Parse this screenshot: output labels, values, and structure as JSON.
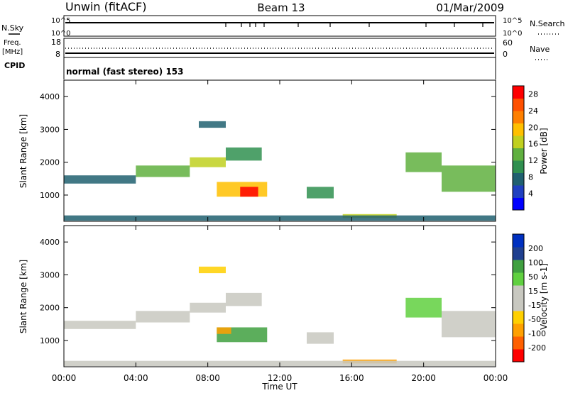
{
  "header": {
    "station": "Unwin (fitACF)",
    "beam": "Beam 13",
    "date": "01/Mar/2009"
  },
  "top_panels": {
    "nsky_label": "N.Sky",
    "nsearch_label": "N.Search",
    "noise_ticks_left": [
      "10^5",
      "10^0"
    ],
    "noise_ticks_right": [
      "10^5",
      "10^0"
    ],
    "freq_label_line1": "Freq.",
    "freq_label_line2": "[MHz]",
    "freq_ticks": [
      "18",
      "8"
    ],
    "nave_label": "Nave",
    "nave_ticks": [
      "60",
      "0"
    ],
    "cpid_label": "CPID",
    "cpid_value": "normal (fast stereo) 153"
  },
  "colors": {
    "axis": "#000000",
    "power_scale": [
      "#0000ff",
      "#2040c0",
      "#206070",
      "#309050",
      "#60b040",
      "#c0d020",
      "#ffc000",
      "#ff8000",
      "#ff5000",
      "#ff0000"
    ],
    "velocity_scale": [
      "#ff0000",
      "#ff6000",
      "#ffa000",
      "#ffd000",
      "#c8c8c0",
      "#c8c8c0",
      "#60d040",
      "#40a040",
      "#204090",
      "#0030c0"
    ]
  },
  "chart_data": [
    {
      "type": "heatmap",
      "title": "",
      "xlabel": "Time UT",
      "ylabel": "Slant Range [km]",
      "x_ticks": [
        "00:00",
        "04:00",
        "08:00",
        "12:00",
        "16:00",
        "20:00",
        "00:00"
      ],
      "y_ticks": [
        "1000",
        "2000",
        "3000",
        "4000"
      ],
      "xlim_hours": [
        0,
        24
      ],
      "ylim_km": [
        200,
        4500
      ],
      "colorbar": {
        "label": "Power [dB]",
        "ticks": [
          "4",
          "8",
          "12",
          "16",
          "20",
          "24",
          "28"
        ],
        "range": [
          0,
          30
        ]
      },
      "echo_regions": [
        {
          "t_start": 0.0,
          "t_end": 4.0,
          "r_start": 1350,
          "r_end": 1600,
          "power_db": 8
        },
        {
          "t_start": 4.0,
          "t_end": 7.0,
          "r_start": 1550,
          "r_end": 1900,
          "power_db": 12
        },
        {
          "t_start": 7.0,
          "t_end": 9.0,
          "r_start": 1850,
          "r_end": 2150,
          "power_db": 16
        },
        {
          "t_start": 9.0,
          "t_end": 11.0,
          "r_start": 2050,
          "r_end": 2450,
          "power_db": 10
        },
        {
          "t_start": 8.5,
          "t_end": 11.3,
          "r_start": 950,
          "r_end": 1400,
          "power_db": 20
        },
        {
          "t_start": 9.8,
          "t_end": 10.8,
          "r_start": 950,
          "r_end": 1250,
          "power_db": 28
        },
        {
          "t_start": 7.5,
          "t_end": 9.0,
          "r_start": 3050,
          "r_end": 3250,
          "power_db": 6
        },
        {
          "t_start": 13.5,
          "t_end": 15.0,
          "r_start": 900,
          "r_end": 1250,
          "power_db": 10
        },
        {
          "t_start": 15.5,
          "t_end": 18.5,
          "r_start": 300,
          "r_end": 420,
          "power_db": 16
        },
        {
          "t_start": 19.0,
          "t_end": 21.0,
          "r_start": 1700,
          "r_end": 2300,
          "power_db": 12
        },
        {
          "t_start": 21.0,
          "t_end": 24.0,
          "r_start": 1100,
          "r_end": 1900,
          "power_db": 14
        },
        {
          "t_start": 0.0,
          "t_end": 24.0,
          "r_start": 220,
          "r_end": 380,
          "power_db": 8
        }
      ]
    },
    {
      "type": "heatmap",
      "title": "",
      "xlabel": "Time UT",
      "ylabel": "Slant Range [km]",
      "x_ticks": [
        "00:00",
        "04:00",
        "08:00",
        "12:00",
        "16:00",
        "20:00",
        "00:00"
      ],
      "y_ticks": [
        "1000",
        "2000",
        "3000",
        "4000"
      ],
      "xlim_hours": [
        0,
        24
      ],
      "ylim_km": [
        200,
        4500
      ],
      "colorbar": {
        "label": "Velocity [m s-1]",
        "ticks": [
          "200",
          "100",
          "50",
          "15",
          "-15",
          "-50",
          "-100",
          "-200"
        ],
        "range": [
          -250,
          250
        ]
      },
      "echo_regions": [
        {
          "t_start": 0.0,
          "t_end": 4.0,
          "r_start": 1350,
          "r_end": 1600,
          "velocity": 0
        },
        {
          "t_start": 4.0,
          "t_end": 7.0,
          "r_start": 1550,
          "r_end": 1900,
          "velocity": 0
        },
        {
          "t_start": 7.0,
          "t_end": 9.0,
          "r_start": 1850,
          "r_end": 2150,
          "velocity": 0
        },
        {
          "t_start": 9.0,
          "t_end": 11.0,
          "r_start": 2050,
          "r_end": 2450,
          "velocity": 0
        },
        {
          "t_start": 8.5,
          "t_end": 11.3,
          "r_start": 950,
          "r_end": 1400,
          "velocity": 60
        },
        {
          "t_start": 8.5,
          "t_end": 9.3,
          "r_start": 1200,
          "r_end": 1400,
          "velocity": -60
        },
        {
          "t_start": 7.5,
          "t_end": 9.0,
          "r_start": 3050,
          "r_end": 3250,
          "velocity": -30
        },
        {
          "t_start": 13.5,
          "t_end": 15.0,
          "r_start": 900,
          "r_end": 1250,
          "velocity": 0
        },
        {
          "t_start": 15.5,
          "t_end": 18.5,
          "r_start": 300,
          "r_end": 420,
          "velocity": -40
        },
        {
          "t_start": 19.0,
          "t_end": 21.0,
          "r_start": 1700,
          "r_end": 2300,
          "velocity": 30
        },
        {
          "t_start": 21.0,
          "t_end": 24.0,
          "r_start": 1100,
          "r_end": 1900,
          "velocity": 0
        },
        {
          "t_start": 0.0,
          "t_end": 24.0,
          "r_start": 220,
          "r_end": 380,
          "velocity": 0
        }
      ]
    }
  ]
}
